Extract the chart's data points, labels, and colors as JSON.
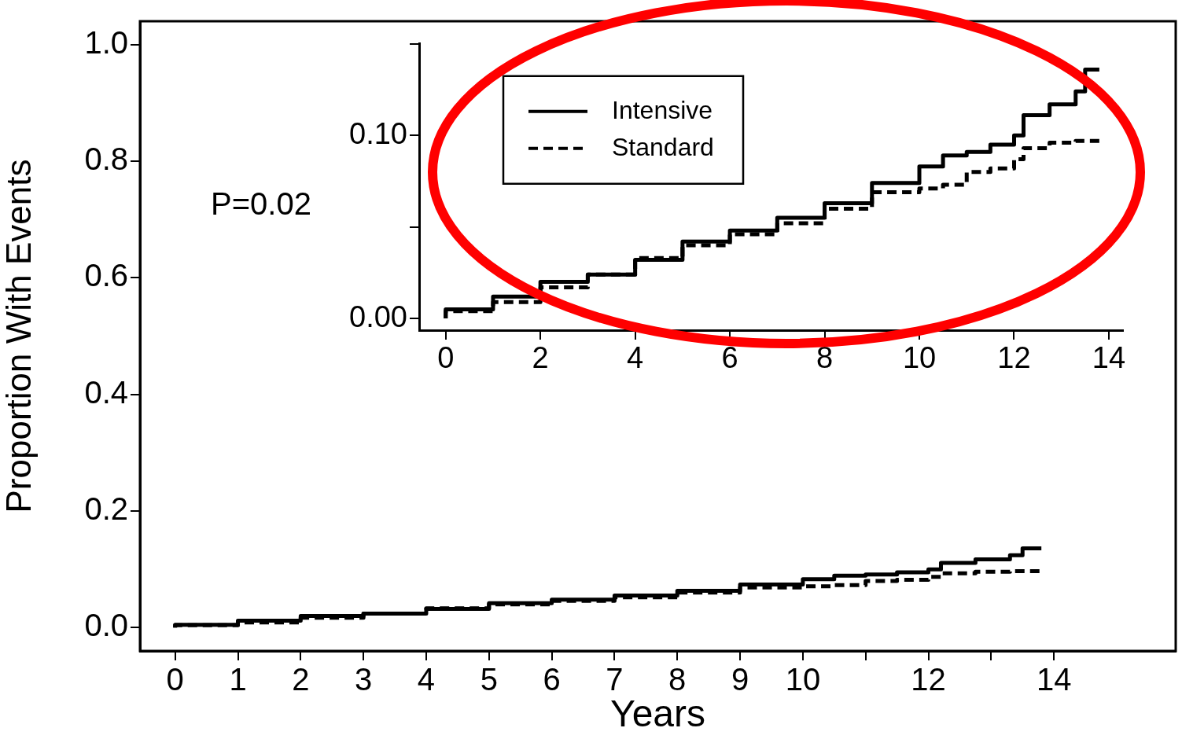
{
  "chart_data": [
    {
      "type": "step",
      "xlabel": "Years",
      "ylabel": "Proportion With Events",
      "x": [
        0,
        1,
        2,
        3,
        4,
        5,
        6,
        7,
        8,
        9,
        10,
        10.5,
        11,
        11.5,
        12,
        12.2,
        12.75,
        13.3,
        13.5,
        13.6,
        13.8
      ],
      "series": [
        {
          "color": "#000000",
          "line_style": "solid",
          "values": [
            0,
            0.005,
            0.012,
            0.02,
            0.024,
            0.032,
            0.042,
            0.048,
            0.055,
            0.063,
            0.074,
            0.083,
            0.089,
            0.091,
            0.095,
            0.1,
            0.111,
            0.117,
            0.124,
            0.136,
            0.136
          ]
        },
        {
          "color": "#000000",
          "line_style": "dashed",
          "values": [
            0,
            0.004,
            0.009,
            0.017,
            0.024,
            0.033,
            0.04,
            0.046,
            0.052,
            0.06,
            0.069,
            0.071,
            0.073,
            0.08,
            0.082,
            0.087,
            0.093,
            0.096,
            0.097,
            0.097,
            0.097
          ]
        }
      ],
      "xlim": [
        -0.56,
        15.94
      ],
      "ylim": [
        -0.04,
        1.04
      ],
      "xticks": [
        0,
        1,
        2,
        3,
        4,
        5,
        6,
        7,
        8,
        9,
        10,
        {
          "value": 11,
          "label": null
        },
        12,
        {
          "value": 13,
          "label": null
        },
        14
      ],
      "yticks": [
        {
          "value": 0,
          "label": "0.0"
        },
        0.2,
        0.4,
        0.6,
        0.8,
        {
          "value": 1,
          "label": "1.0"
        }
      ],
      "grid": false,
      "legend": false,
      "marker": "none",
      "annotations": [
        "P=0.02"
      ]
    },
    {
      "type": "step",
      "x": [
        0,
        1,
        2,
        3,
        4,
        5,
        6,
        7,
        8,
        9,
        10,
        10.5,
        11,
        11.5,
        12,
        12.2,
        12.75,
        13.3,
        13.5,
        13.6,
        13.8
      ],
      "series": [
        {
          "name": "Intensive",
          "color": "#000000",
          "line_style": "solid",
          "values": [
            0,
            0.005,
            0.012,
            0.02,
            0.024,
            0.032,
            0.042,
            0.048,
            0.055,
            0.063,
            0.074,
            0.083,
            0.089,
            0.091,
            0.095,
            0.1,
            0.111,
            0.117,
            0.124,
            0.136,
            0.136
          ]
        },
        {
          "name": "Standard",
          "color": "#000000",
          "line_style": "dashed",
          "values": [
            0,
            0.004,
            0.009,
            0.017,
            0.024,
            0.033,
            0.04,
            0.046,
            0.052,
            0.06,
            0.069,
            0.071,
            0.073,
            0.08,
            0.082,
            0.087,
            0.093,
            0.096,
            0.097,
            0.097,
            0.097
          ]
        }
      ],
      "xlim": [
        -0.56,
        14.3
      ],
      "ylim": [
        -0.0064,
        0.15
      ],
      "xticks": [
        0,
        2,
        4,
        6,
        8,
        10,
        12,
        14
      ],
      "yticks": [
        {
          "value": 0,
          "label": "0.00"
        },
        {
          "value": 0.05,
          "label": null
        },
        {
          "value": 0.1,
          "label": "0.10"
        },
        {
          "value": 0.15,
          "label": null
        }
      ],
      "grid": false,
      "legend": "top left",
      "marker": "none"
    }
  ]
}
